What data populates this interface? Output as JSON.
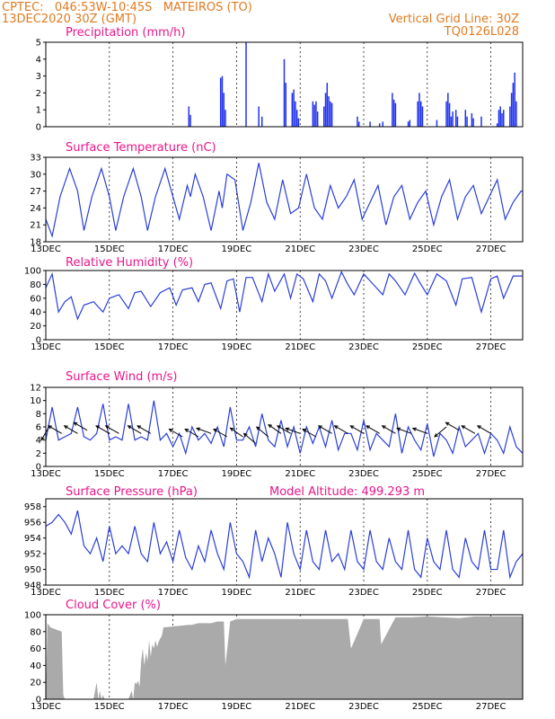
{
  "header": {
    "line1": "CPTEC:   046:53W-10:45S   MATEIROS (TO)",
    "line2": "13DEC2020 30Z (GMT)",
    "right1": "Vertical Grid Line: 30Z",
    "right2": "TQ0126L028"
  },
  "colors": {
    "line": "#2a3fd8",
    "bar": "#2233ee",
    "cloud": "#aaaaaa",
    "title": "#e8168b",
    "header": "#e07a1f"
  },
  "x_labels": [
    "13DEC",
    "15DEC",
    "17DEC",
    "19DEC",
    "21DEC",
    "23DEC",
    "25DEC",
    "27DEC"
  ],
  "chart_data": [
    {
      "type": "bar",
      "title": "Precipitation (mm/h)",
      "ylim": [
        0,
        5
      ],
      "yticks": [
        0,
        1,
        2,
        3,
        4,
        5
      ],
      "x_start": 0,
      "x_end": 15,
      "bars": [
        [
          4.5,
          1.2
        ],
        [
          4.55,
          0.7
        ],
        [
          5.5,
          2.9
        ],
        [
          5.55,
          3.0
        ],
        [
          5.6,
          2.0
        ],
        [
          5.65,
          1.0
        ],
        [
          6.3,
          5.0
        ],
        [
          6.7,
          1.2
        ],
        [
          6.8,
          0.6
        ],
        [
          7.5,
          4.0
        ],
        [
          7.55,
          2.6
        ],
        [
          7.75,
          2.0
        ],
        [
          7.8,
          2.2
        ],
        [
          7.85,
          1.5
        ],
        [
          7.9,
          1.0
        ],
        [
          7.95,
          0.5
        ],
        [
          8.4,
          1.5
        ],
        [
          8.45,
          1.3
        ],
        [
          8.5,
          1.5
        ],
        [
          8.55,
          0.9
        ],
        [
          8.75,
          1.2
        ],
        [
          8.8,
          2.0
        ],
        [
          8.85,
          2.6
        ],
        [
          8.9,
          1.8
        ],
        [
          8.95,
          1.5
        ],
        [
          9.0,
          1.4
        ],
        [
          9.8,
          0.6
        ],
        [
          9.85,
          0.3
        ],
        [
          10.2,
          0.3
        ],
        [
          10.5,
          0.2
        ],
        [
          10.6,
          0.3
        ],
        [
          10.9,
          2.0
        ],
        [
          10.95,
          1.6
        ],
        [
          11.0,
          1.4
        ],
        [
          11.4,
          0.3
        ],
        [
          11.45,
          0.4
        ],
        [
          11.7,
          1.5
        ],
        [
          11.75,
          2.0
        ],
        [
          11.8,
          1.5
        ],
        [
          11.85,
          1.2
        ],
        [
          12.3,
          0.4
        ],
        [
          12.6,
          1.5
        ],
        [
          12.65,
          2.0
        ],
        [
          12.7,
          1.4
        ],
        [
          12.75,
          0.6
        ],
        [
          12.8,
          0.9
        ],
        [
          12.9,
          1.0
        ],
        [
          12.95,
          0.6
        ],
        [
          13.2,
          1.0
        ],
        [
          13.25,
          0.6
        ],
        [
          13.4,
          0.8
        ],
        [
          13.45,
          0.5
        ],
        [
          13.7,
          0.6
        ],
        [
          14.2,
          0.2
        ],
        [
          14.25,
          1.0
        ],
        [
          14.3,
          1.2
        ],
        [
          14.35,
          0.8
        ],
        [
          14.4,
          1.0
        ],
        [
          14.6,
          1.2
        ],
        [
          14.65,
          2.0
        ],
        [
          14.7,
          2.6
        ],
        [
          14.75,
          3.2
        ],
        [
          14.8,
          1.5
        ]
      ]
    },
    {
      "type": "line",
      "title": "Surface Temperature (nC)",
      "ylim": [
        18,
        33
      ],
      "yticks": [
        18,
        21,
        24,
        27,
        30,
        33
      ],
      "x": [
        0,
        0.2,
        0.45,
        0.75,
        1.0,
        1.2,
        1.45,
        1.75,
        2.0,
        2.2,
        2.45,
        2.75,
        3.0,
        3.2,
        3.45,
        3.75,
        4.0,
        4.2,
        4.45,
        4.55,
        4.7,
        4.95,
        5.2,
        5.45,
        5.55,
        5.7,
        5.95,
        6.2,
        6.45,
        6.7,
        6.95,
        7.2,
        7.45,
        7.7,
        7.95,
        8.2,
        8.45,
        8.7,
        8.95,
        9.2,
        9.45,
        9.7,
        9.95,
        10.2,
        10.45,
        10.7,
        10.95,
        11.2,
        11.45,
        11.7,
        11.95,
        12.2,
        12.45,
        12.7,
        12.95,
        13.2,
        13.45,
        13.7,
        13.95,
        14.2,
        14.45,
        14.7,
        14.95,
        15.0
      ],
      "y": [
        22,
        19,
        26,
        31,
        27,
        20,
        26,
        31,
        26,
        20,
        26,
        31,
        26,
        20,
        26,
        31,
        26,
        22,
        28,
        26,
        30,
        26,
        20,
        27,
        24,
        30,
        29,
        20,
        25,
        32,
        25,
        22,
        29,
        23,
        24,
        30,
        24,
        22,
        28,
        24,
        26,
        29,
        22,
        25,
        28,
        21,
        26,
        28,
        22,
        25,
        27,
        21,
        26,
        29,
        22,
        26,
        28,
        23,
        26,
        29,
        22,
        25,
        27,
        27
      ]
    },
    {
      "type": "line",
      "title": "Relative Humidity (%)",
      "ylim": [
        0,
        100
      ],
      "yticks": [
        0,
        20,
        40,
        60,
        80,
        100
      ],
      "x": [
        0,
        0.2,
        0.4,
        0.6,
        0.8,
        1.0,
        1.2,
        1.5,
        1.8,
        2.0,
        2.3,
        2.6,
        2.8,
        3.0,
        3.3,
        3.6,
        3.9,
        4.1,
        4.3,
        4.6,
        4.8,
        5.0,
        5.2,
        5.5,
        5.7,
        5.9,
        6.1,
        6.3,
        6.5,
        6.8,
        7.0,
        7.2,
        7.5,
        7.7,
        7.9,
        8.1,
        8.4,
        8.6,
        8.8,
        9.0,
        9.3,
        9.5,
        9.7,
        10.0,
        10.3,
        10.6,
        10.8,
        11.0,
        11.3,
        11.6,
        11.8,
        12.0,
        12.3,
        12.6,
        12.9,
        13.1,
        13.4,
        13.7,
        14.0,
        14.2,
        14.4,
        14.7,
        14.9,
        15.0
      ],
      "y": [
        75,
        95,
        40,
        55,
        62,
        30,
        50,
        55,
        40,
        60,
        65,
        45,
        68,
        70,
        48,
        68,
        75,
        50,
        72,
        75,
        55,
        80,
        82,
        45,
        85,
        88,
        40,
        90,
        90,
        55,
        95,
        70,
        95,
        60,
        95,
        88,
        55,
        95,
        85,
        60,
        98,
        80,
        65,
        95,
        80,
        65,
        95,
        85,
        65,
        96,
        80,
        65,
        95,
        85,
        50,
        88,
        90,
        40,
        88,
        92,
        60,
        92,
        92,
        92
      ]
    },
    {
      "type": "line",
      "title": "Surface Wind (m/s)",
      "ylim": [
        0,
        12
      ],
      "yticks": [
        0,
        2,
        4,
        6,
        8,
        10,
        12
      ],
      "x": [
        0,
        0.2,
        0.4,
        0.6,
        0.8,
        1.0,
        1.2,
        1.4,
        1.6,
        1.8,
        2.0,
        2.2,
        2.4,
        2.6,
        2.8,
        3.0,
        3.2,
        3.4,
        3.6,
        3.8,
        4.0,
        4.2,
        4.4,
        4.6,
        4.8,
        5.0,
        5.2,
        5.4,
        5.6,
        5.8,
        6.0,
        6.2,
        6.4,
        6.6,
        6.8,
        7.0,
        7.2,
        7.4,
        7.6,
        7.8,
        8.0,
        8.2,
        8.4,
        8.6,
        8.8,
        9.0,
        9.2,
        9.4,
        9.6,
        9.8,
        10.0,
        10.2,
        10.4,
        10.6,
        10.8,
        11.0,
        11.2,
        11.4,
        11.6,
        11.8,
        12.0,
        12.2,
        12.4,
        12.6,
        12.8,
        13.0,
        13.2,
        13.4,
        13.6,
        13.8,
        14.0,
        14.2,
        14.4,
        14.6,
        14.8,
        15.0
      ],
      "y": [
        4,
        9,
        4,
        4.5,
        5,
        9,
        4.5,
        4,
        5,
        9.5,
        4,
        4.5,
        4,
        9.5,
        4,
        4.5,
        4,
        10,
        4,
        5,
        3,
        5,
        2,
        6,
        4,
        5,
        3.5,
        6,
        3,
        9,
        4,
        4,
        6,
        3,
        8,
        4,
        3,
        7,
        3,
        6,
        2,
        6,
        3.5,
        6,
        3,
        7,
        2.5,
        5,
        5,
        2.5,
        7,
        2.5,
        5,
        4,
        3,
        8,
        2,
        6,
        4,
        2.5,
        6.5,
        1.5,
        5,
        4,
        2,
        6,
        3,
        4,
        5,
        2,
        5,
        4,
        2,
        6,
        3,
        2
      ]
    },
    {
      "type": "line",
      "title": "Surface Pressure (hPa)",
      "ylim": [
        948,
        959
      ],
      "yticks": [
        948,
        950,
        952,
        954,
        956,
        958
      ],
      "x": [
        0,
        0.2,
        0.4,
        0.6,
        0.8,
        1.0,
        1.2,
        1.4,
        1.6,
        1.8,
        2.0,
        2.2,
        2.4,
        2.6,
        2.8,
        3.0,
        3.2,
        3.4,
        3.6,
        3.8,
        4.0,
        4.2,
        4.4,
        4.6,
        4.8,
        5.0,
        5.2,
        5.4,
        5.6,
        5.8,
        6.0,
        6.2,
        6.4,
        6.6,
        6.8,
        7.0,
        7.2,
        7.4,
        7.6,
        7.8,
        8.0,
        8.2,
        8.4,
        8.6,
        8.8,
        9.0,
        9.2,
        9.4,
        9.6,
        9.8,
        10.0,
        10.2,
        10.4,
        10.6,
        10.8,
        11.0,
        11.2,
        11.4,
        11.6,
        11.8,
        12.0,
        12.2,
        12.4,
        12.6,
        12.8,
        13.0,
        13.2,
        13.4,
        13.6,
        13.8,
        14.0,
        14.2,
        14.4,
        14.6,
        14.8,
        15.0
      ],
      "y": [
        955.5,
        956,
        957,
        956,
        954.5,
        957.5,
        953,
        952,
        954,
        951,
        955.5,
        952,
        953,
        952,
        955.5,
        952,
        951,
        956,
        952,
        953.5,
        951,
        955,
        951.5,
        950,
        953,
        951,
        955,
        952,
        950,
        956,
        952,
        951,
        949,
        955,
        951,
        954,
        952,
        949,
        956,
        952,
        950,
        955,
        951,
        950,
        955,
        951,
        952,
        950,
        955,
        951,
        950,
        955,
        951,
        950,
        954,
        951,
        950,
        955,
        950,
        949,
        954,
        951,
        950,
        955,
        950,
        949,
        954,
        951,
        950,
        955,
        950,
        950,
        955,
        949,
        951,
        952
      ]
    },
    {
      "type": "area",
      "title": "Cloud Cover (%)",
      "ylim": [
        0,
        100
      ],
      "yticks": [
        0,
        20,
        40,
        60,
        80,
        100
      ],
      "x": [
        0,
        0.05,
        0.15,
        0.5,
        0.55,
        0.6,
        1.5,
        1.6,
        1.65,
        1.7,
        1.75,
        1.8,
        1.85,
        1.9,
        2.6,
        2.7,
        2.75,
        2.8,
        2.85,
        2.9,
        2.95,
        3.0,
        3.05,
        3.1,
        3.15,
        3.2,
        3.25,
        3.3,
        3.35,
        3.4,
        3.45,
        3.5,
        3.55,
        3.6,
        3.65,
        3.7,
        4.5,
        4.6,
        4.8,
        5.2,
        5.4,
        5.6,
        5.65,
        5.8,
        6.0,
        6.5,
        7.0,
        7.5,
        8.0,
        8.5,
        9.0,
        9.5,
        9.6,
        10.0,
        10.5,
        10.55,
        11.0,
        11.5,
        12.0,
        12.5,
        13.0,
        13.5,
        14.0,
        14.5,
        15.0
      ],
      "y": [
        0,
        90,
        85,
        80,
        5,
        0,
        0,
        20,
        0,
        10,
        0,
        5,
        0,
        0,
        0,
        10,
        0,
        20,
        18,
        22,
        15,
        45,
        60,
        40,
        55,
        45,
        70,
        50,
        65,
        60,
        70,
        62,
        68,
        72,
        75,
        85,
        88,
        88,
        90,
        90,
        92,
        92,
        40,
        92,
        95,
        95,
        95,
        95,
        95,
        95,
        95,
        95,
        60,
        95,
        95,
        65,
        97,
        97,
        98,
        97,
        96,
        98,
        98,
        98,
        98
      ]
    }
  ],
  "wind_arrows": [
    [
      0.1,
      6.0,
      120
    ],
    [
      0.5,
      5.0,
      210
    ],
    [
      1.0,
      5.0,
      210
    ],
    [
      1.3,
      5.5,
      210
    ],
    [
      2.0,
      5.0,
      210
    ],
    [
      2.3,
      5.0,
      210
    ],
    [
      3.0,
      5.0,
      210
    ],
    [
      3.3,
      5.0,
      210
    ],
    [
      4.3,
      4.5,
      210
    ],
    [
      4.8,
      4.5,
      210
    ],
    [
      5.2,
      5.0,
      200
    ],
    [
      5.7,
      4.5,
      210
    ],
    [
      6.2,
      4.5,
      215
    ],
    [
      6.6,
      3.5,
      220
    ],
    [
      7.0,
      4.5,
      220
    ],
    [
      7.4,
      5.0,
      215
    ],
    [
      7.7,
      5.0,
      210
    ],
    [
      8.0,
      5.0,
      200
    ],
    [
      8.5,
      4.5,
      210
    ],
    [
      9.0,
      5.0,
      210
    ],
    [
      9.5,
      5.0,
      210
    ],
    [
      10.0,
      5.0,
      210
    ],
    [
      10.5,
      5.0,
      210
    ],
    [
      11.0,
      5.0,
      210
    ],
    [
      11.5,
      5.0,
      200
    ],
    [
      12.0,
      5.0,
      200
    ],
    [
      12.6,
      6.0,
      140
    ],
    [
      13.0,
      5.5,
      210
    ],
    [
      13.5,
      5.0,
      210
    ],
    [
      14.0,
      5.0,
      210
    ]
  ],
  "altitude_label": "Model Altitude: 499.293 m"
}
